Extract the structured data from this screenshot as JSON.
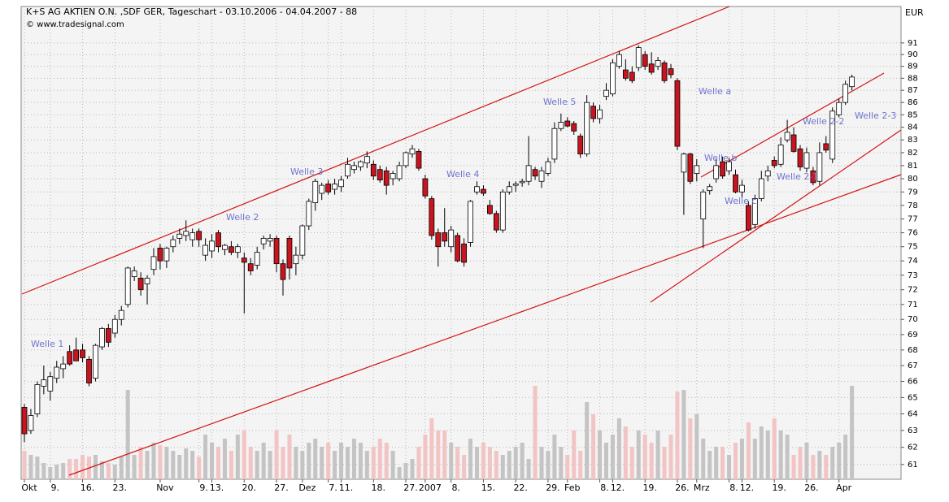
{
  "chart_data": {
    "type": "candlestick",
    "title": "K+S AG AKTIEN O.N. ,SDF GER, Tageschart - 03.10.2006 - 04.04.2007 - 88",
    "subtitle": "© www.tradesignal.com",
    "y_axis_label": "EUR",
    "annotations": [
      "Welle 1",
      "Welle 2",
      "Welle 3",
      "Welle 4",
      "Welle 5",
      "Welle a",
      "Welle b",
      "Welle c",
      "Welle 2-1",
      "Welle 2-2",
      "Welle 2-3"
    ],
    "log_y": true,
    "grid": true,
    "up_color": "#ffffff",
    "down_color": "#c8141e",
    "volume_up_color": "#c4c4c4",
    "volume_down_color": "#f2c4c4",
    "categories": [
      "Okt",
      null,
      null,
      null,
      "9.",
      null,
      null,
      null,
      null,
      "16.",
      null,
      null,
      null,
      null,
      "23.",
      null,
      null,
      null,
      null,
      null,
      null,
      "Nov",
      null,
      null,
      null,
      null,
      null,
      "9.",
      null,
      "13.",
      null,
      null,
      null,
      null,
      "20.",
      null,
      null,
      null,
      null,
      "27.",
      null,
      null,
      null,
      "Dez",
      null,
      null,
      null,
      "7.",
      null,
      "11.",
      null,
      null,
      null,
      null,
      "18.",
      null,
      null,
      null,
      null,
      "27.",
      null,
      null,
      "2007",
      null,
      null,
      null,
      "8.",
      null,
      null,
      null,
      null,
      "15.",
      null,
      null,
      null,
      null,
      "22.",
      null,
      null,
      null,
      null,
      "29.",
      null,
      null,
      "Feb",
      null,
      null,
      null,
      null,
      "8.",
      null,
      "12.",
      null,
      null,
      null,
      null,
      "19.",
      null,
      null,
      null,
      null,
      "26.",
      null,
      null,
      "Mrz",
      null,
      null,
      null,
      null,
      "8.",
      null,
      "12.",
      null,
      null,
      null,
      null,
      "19.",
      null,
      null,
      null,
      null,
      "26.",
      null,
      null,
      null,
      null,
      "Apr",
      null,
      null
    ],
    "open": [
      64.4,
      63.0,
      64.0,
      65.7,
      65.4,
      66.2,
      66.8,
      67.9,
      68.0,
      68.0,
      67.4,
      66.2,
      68.2,
      69.4,
      69.1,
      70.0,
      71.0,
      72.9,
      72.8,
      72.4,
      73.4,
      74.9,
      74.0,
      75.0,
      75.6,
      75.8,
      75.5,
      76.1,
      74.4,
      74.7,
      76.0,
      74.8,
      75.0,
      74.6,
      74.2,
      73.8,
      73.7,
      75.2,
      75.4,
      75.6,
      73.8,
      75.6,
      73.8,
      74.4,
      76.5,
      78.2,
      78.9,
      79.6,
      79.2,
      79.4,
      80.2,
      80.7,
      80.9,
      81.2,
      81.1,
      80.7,
      80.6,
      80.0,
      80.0,
      81.0,
      81.9,
      82.1,
      80.0,
      78.5,
      76.0,
      76.0,
      75.0,
      75.8,
      75.2,
      75.3,
      79.0,
      79.2,
      78.0,
      77.4,
      76.2,
      79.0,
      79.5,
      79.7,
      79.8,
      80.7,
      79.8,
      80.4,
      81.5,
      83.9,
      84.5,
      84.3,
      83.3,
      81.9,
      85.7,
      84.7,
      86.5,
      86.7,
      89.0,
      88.7,
      88.5,
      88.9,
      90.0,
      89.2,
      89.0,
      89.3,
      88.8,
      87.8,
      80.5,
      81.9,
      80.4,
      77.0,
      79.1,
      80.0,
      81.3,
      80.6,
      80.3,
      79.0,
      78.0,
      76.6,
      78.5,
      80.2,
      81.4,
      81.1,
      83.0,
      83.4,
      82.3,
      80.8,
      80.6,
      79.8,
      82.7,
      81.5,
      85.0,
      86.0,
      87.3
    ],
    "high": [
      64.6,
      64.3,
      66.0,
      67.0,
      66.6,
      67.3,
      67.6,
      68.3,
      68.8,
      68.4,
      67.6,
      68.4,
      69.5,
      69.7,
      70.3,
      70.9,
      73.6,
      73.6,
      73.2,
      73.0,
      74.9,
      75.2,
      75.0,
      75.8,
      76.3,
      76.9,
      76.3,
      76.3,
      75.6,
      75.9,
      76.2,
      75.2,
      75.4,
      75.2,
      74.6,
      74.2,
      75.0,
      75.8,
      75.9,
      75.8,
      74.1,
      75.8,
      75.0,
      76.6,
      78.5,
      80.0,
      79.7,
      79.9,
      80.0,
      80.2,
      81.6,
      81.3,
      81.4,
      82.1,
      81.4,
      81.0,
      80.9,
      80.6,
      81.3,
      82.1,
      82.6,
      82.3,
      80.3,
      78.7,
      76.3,
      77.8,
      76.5,
      76.0,
      75.6,
      78.4,
      79.8,
      79.5,
      78.4,
      77.6,
      79.2,
      79.8,
      79.8,
      80.0,
      83.3,
      80.9,
      80.9,
      81.6,
      84.4,
      85.1,
      84.8,
      84.5,
      83.5,
      86.6,
      86.0,
      85.8,
      87.6,
      89.6,
      90.3,
      89.6,
      89.0,
      90.8,
      90.3,
      90.2,
      89.8,
      89.5,
      89.2,
      88.0,
      82.0,
      82.0,
      81.5,
      79.2,
      79.6,
      81.5,
      81.7,
      81.6,
      80.7,
      79.9,
      78.3,
      78.8,
      80.6,
      81.0,
      81.7,
      83.2,
      84.6,
      84.0,
      82.6,
      82.4,
      80.9,
      82.8,
      83.3,
      85.6,
      86.3,
      87.8,
      88.3
    ],
    "low": [
      62.3,
      62.8,
      63.8,
      65.2,
      64.8,
      65.9,
      66.2,
      67.0,
      67.4,
      67.2,
      65.7,
      66.0,
      68.0,
      68.2,
      68.8,
      69.6,
      70.8,
      72.6,
      71.6,
      71.0,
      73.0,
      73.4,
      73.5,
      74.6,
      75.2,
      75.4,
      75.0,
      75.0,
      74.0,
      74.2,
      74.6,
      74.4,
      74.4,
      74.2,
      70.4,
      73.0,
      73.4,
      74.8,
      75.0,
      73.2,
      71.6,
      72.7,
      73.0,
      74.1,
      76.2,
      77.6,
      78.4,
      78.8,
      78.8,
      79.0,
      80.0,
      80.4,
      80.6,
      80.8,
      79.9,
      79.7,
      78.8,
      79.5,
      79.8,
      80.8,
      81.6,
      80.6,
      78.5,
      75.5,
      73.6,
      75.0,
      74.6,
      73.9,
      73.6,
      75.0,
      78.8,
      78.7,
      77.3,
      76.0,
      76.0,
      78.8,
      79.0,
      79.4,
      79.5,
      79.9,
      79.3,
      80.2,
      81.2,
      83.7,
      84.0,
      83.4,
      81.6,
      81.7,
      84.4,
      84.3,
      86.2,
      86.5,
      88.8,
      87.8,
      87.6,
      88.6,
      88.7,
      88.3,
      88.7,
      87.6,
      88.0,
      82.2,
      77.3,
      79.6,
      79.8,
      74.9,
      78.8,
      79.7,
      80.0,
      80.3,
      78.9,
      78.6,
      76.1,
      76.3,
      78.3,
      79.8,
      80.8,
      80.9,
      82.8,
      82.0,
      80.6,
      80.5,
      79.5,
      79.5,
      82.0,
      81.2,
      84.8,
      85.8,
      87.0
    ],
    "close": [
      62.8,
      63.9,
      65.8,
      66.1,
      66.3,
      66.9,
      67.1,
      67.1,
      67.3,
      67.5,
      65.9,
      68.3,
      69.4,
      68.5,
      70.0,
      70.6,
      73.5,
      73.3,
      72.0,
      72.8,
      74.3,
      74.0,
      74.9,
      75.5,
      75.9,
      76.1,
      76.0,
      75.5,
      75.1,
      75.4,
      75.0,
      75.1,
      74.6,
      75.0,
      73.9,
      73.3,
      74.6,
      75.6,
      75.6,
      73.8,
      72.7,
      73.5,
      74.4,
      76.5,
      78.3,
      79.8,
      79.5,
      79.0,
      79.6,
      79.9,
      81.1,
      81.0,
      81.3,
      81.7,
      80.2,
      79.9,
      79.5,
      80.4,
      81.0,
      82.0,
      82.3,
      80.8,
      78.7,
      75.8,
      75.0,
      75.4,
      76.2,
      74.0,
      73.9,
      78.3,
      79.4,
      78.9,
      77.4,
      76.2,
      79.0,
      79.4,
      79.6,
      79.8,
      81.0,
      80.2,
      80.6,
      81.3,
      83.9,
      84.4,
      84.1,
      83.7,
      81.9,
      86.0,
      84.7,
      85.4,
      87.0,
      89.3,
      90.0,
      88.0,
      87.8,
      90.6,
      89.0,
      88.5,
      89.5,
      87.8,
      88.3,
      82.5,
      81.9,
      79.8,
      81.0,
      79.0,
      79.4,
      81.0,
      80.2,
      81.3,
      79.0,
      79.5,
      76.2,
      78.5,
      80.0,
      80.6,
      81.0,
      82.6,
      83.6,
      82.1,
      80.9,
      82.0,
      79.7,
      82.0,
      82.2,
      85.3,
      86.0,
      87.5,
      88.1
    ],
    "volume": [
      35,
      30,
      28,
      20,
      15,
      18,
      20,
      25,
      25,
      30,
      28,
      30,
      22,
      20,
      18,
      28,
      110,
      30,
      40,
      35,
      45,
      42,
      40,
      35,
      30,
      38,
      35,
      28,
      55,
      45,
      40,
      50,
      35,
      55,
      60,
      40,
      35,
      45,
      35,
      60,
      40,
      55,
      40,
      35,
      45,
      50,
      40,
      45,
      35,
      45,
      40,
      50,
      45,
      35,
      40,
      50,
      45,
      35,
      15,
      20,
      25,
      40,
      55,
      75,
      60,
      60,
      45,
      40,
      30,
      50,
      40,
      45,
      40,
      35,
      30,
      35,
      40,
      45,
      25,
      115,
      40,
      35,
      55,
      40,
      30,
      60,
      35,
      95,
      80,
      60,
      45,
      55,
      75,
      65,
      40,
      60,
      55,
      45,
      60,
      40,
      55,
      108,
      110,
      75,
      80,
      50,
      35,
      40,
      40,
      30,
      45,
      50,
      70,
      50,
      65,
      60,
      75,
      60,
      55,
      30,
      40,
      45,
      30,
      35,
      30,
      40,
      45,
      55,
      115
    ],
    "ylim": [
      60.15,
      94.2
    ],
    "yticks": [
      61,
      62,
      63,
      64,
      65,
      66,
      67,
      68,
      69,
      70,
      71,
      72,
      73,
      74,
      75,
      76,
      77,
      78,
      79,
      80,
      81,
      82,
      83,
      84,
      85,
      86,
      87,
      88,
      89,
      90,
      91
    ]
  }
}
